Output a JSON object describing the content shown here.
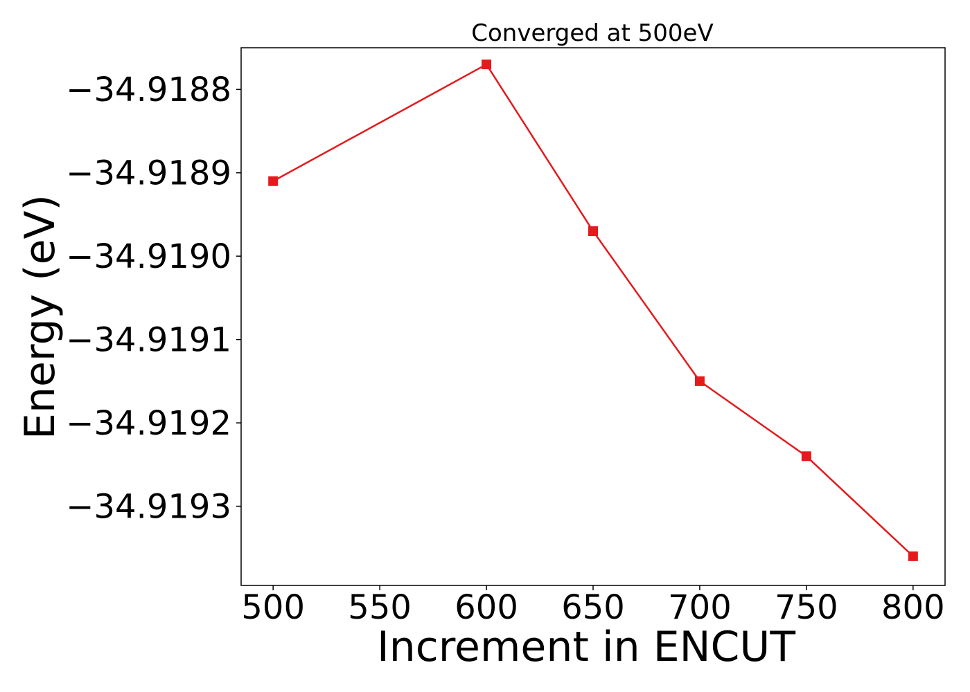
{
  "chart_data": {
    "type": "line",
    "title": "Converged at 500eV",
    "xlabel": "Increment in ENCUT",
    "ylabel": "Energy (eV)",
    "x": [
      500,
      600,
      650,
      700,
      750,
      800
    ],
    "series": [
      {
        "values": [
          -34.91891,
          -34.91877,
          -34.91897,
          -34.91915,
          -34.91924,
          -34.91936
        ],
        "color": "#e41a1c",
        "marker": "square"
      }
    ],
    "xticks": [
      500,
      550,
      600,
      650,
      700,
      750,
      800
    ],
    "xtick_labels": [
      "500",
      "550",
      "600",
      "650",
      "700",
      "750",
      "800"
    ],
    "yticks": [
      -34.9188,
      -34.9189,
      -34.919,
      -34.9191,
      -34.9192,
      -34.9193
    ],
    "ytick_labels": [
      "−34.9188",
      "−34.9189",
      "−34.9190",
      "−34.9191",
      "−34.9192",
      "−34.9193"
    ],
    "xlim": [
      485,
      815
    ],
    "ylim": [
      -34.919395,
      -34.91875
    ],
    "grid": false,
    "legend": false
  }
}
